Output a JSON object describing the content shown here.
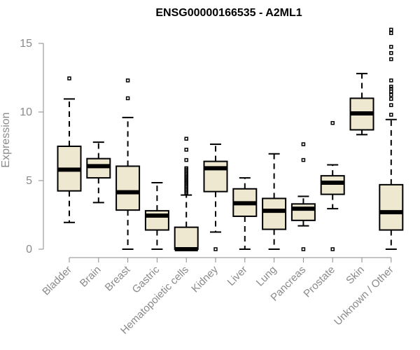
{
  "chart_data": {
    "type": "box",
    "title": "ENSG00000166535 - A2ML1",
    "xlabel": "",
    "ylabel": "Expression",
    "ylim": [
      0,
      16
    ],
    "yticks": [
      0,
      5,
      10,
      15
    ],
    "grid": false,
    "legend": "none",
    "box_fill": "#EFE8D0",
    "line_color": "#000000",
    "axis_color": "#8A8A8A",
    "categories": [
      "Bladder",
      "Brain",
      "Breast",
      "Gastric",
      "Hematopoietic cells",
      "Kidney",
      "Liver",
      "Lung",
      "Pancreas",
      "Prostate",
      "Skin",
      "Unknown / Other"
    ],
    "boxes": [
      {
        "category": "Bladder",
        "min": 1.95,
        "q1": 4.25,
        "median": 5.8,
        "q3": 7.5,
        "max": 10.95,
        "outliers": [
          12.45
        ]
      },
      {
        "category": "Brain",
        "min": 3.4,
        "q1": 5.2,
        "median": 6.05,
        "q3": 6.6,
        "max": 7.8,
        "outliers": []
      },
      {
        "category": "Breast",
        "min": 0.0,
        "q1": 2.85,
        "median": 4.15,
        "q3": 6.05,
        "max": 9.6,
        "outliers": [
          11.0,
          12.3
        ]
      },
      {
        "category": "Gastric",
        "min": 0.0,
        "q1": 1.4,
        "median": 2.45,
        "q3": 2.8,
        "max": 4.85,
        "outliers": []
      },
      {
        "category": "Hematopoietic cells",
        "min": 0.0,
        "q1": 0.0,
        "median": 0.0,
        "q3": 1.6,
        "max": 3.95,
        "outliers": [
          4.1,
          4.2,
          4.3,
          4.4,
          4.5,
          4.6,
          4.7,
          4.8,
          4.9,
          5.0,
          5.1,
          5.2,
          5.3,
          5.4,
          5.5,
          5.6,
          5.7,
          5.8,
          5.9,
          6.5,
          7.25,
          8.05
        ]
      },
      {
        "category": "Kidney",
        "min": 1.25,
        "q1": 4.2,
        "median": 5.9,
        "q3": 6.4,
        "max": 7.65,
        "outliers": [
          0.0
        ]
      },
      {
        "category": "Liver",
        "min": 0.0,
        "q1": 2.4,
        "median": 3.35,
        "q3": 4.4,
        "max": 5.2,
        "outliers": []
      },
      {
        "category": "Lung",
        "min": 0.0,
        "q1": 1.45,
        "median": 2.8,
        "q3": 3.7,
        "max": 6.95,
        "outliers": []
      },
      {
        "category": "Pancreas",
        "min": 1.7,
        "q1": 2.1,
        "median": 2.95,
        "q3": 3.3,
        "max": 3.85,
        "outliers": [
          0.0,
          6.5,
          7.65
        ]
      },
      {
        "category": "Prostate",
        "min": 2.95,
        "q1": 4.0,
        "median": 4.85,
        "q3": 5.35,
        "max": 6.15,
        "outliers": [
          0.0,
          9.2
        ]
      },
      {
        "category": "Skin",
        "min": 8.35,
        "q1": 8.7,
        "median": 9.9,
        "q3": 11.0,
        "max": 12.8,
        "outliers": []
      },
      {
        "category": "Unknown / Other",
        "min": 0.0,
        "q1": 1.4,
        "median": 2.7,
        "q3": 4.7,
        "max": 9.45,
        "outliers": [
          9.8,
          10.5,
          10.95,
          11.25,
          11.5,
          11.7,
          11.85,
          12.3,
          13.85,
          14.3,
          14.75,
          15.75,
          16.0
        ]
      }
    ]
  }
}
